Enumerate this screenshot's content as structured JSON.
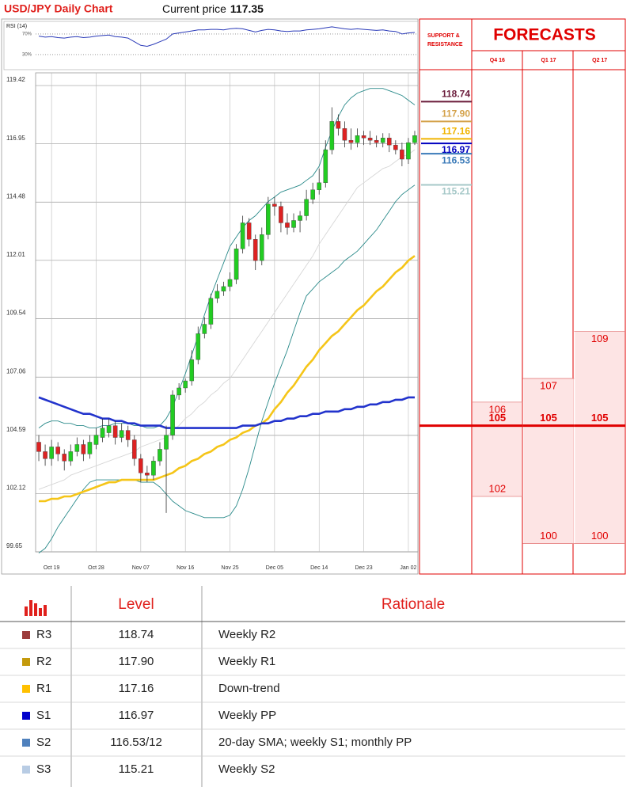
{
  "header": {
    "title": "USD/JPY Daily Chart",
    "price_label": "Current price",
    "price": "117.35"
  },
  "chart_data": [
    {
      "type": "line",
      "title": "RSI (14)",
      "color": "#2a3ab8",
      "ylim": [
        13,
        93
      ],
      "yticks": [
        {
          "value": 70,
          "label": "70%"
        },
        {
          "value": 30,
          "label": "30%"
        }
      ],
      "values": [
        66,
        64,
        65,
        63,
        62,
        64,
        65,
        63,
        64,
        66,
        67,
        68,
        65,
        64,
        62,
        55,
        48,
        46,
        50,
        55,
        60,
        70,
        72,
        74,
        76,
        78,
        78,
        79,
        79,
        78,
        80,
        81,
        80,
        77,
        74,
        77,
        79,
        78,
        76,
        75,
        76,
        76,
        78,
        79,
        80,
        82,
        84,
        82,
        80,
        79,
        80,
        79,
        78,
        77,
        78,
        76,
        75,
        70,
        72,
        73
      ]
    },
    {
      "type": "candlestick",
      "ylim": [
        99.65,
        119.96
      ],
      "yticks": [
        119.42,
        116.95,
        114.48,
        112.01,
        109.54,
        107.06,
        104.59,
        102.12,
        99.65
      ],
      "up_color": "#22cc22",
      "down_color": "#dd2222",
      "grid": true,
      "categories": [
        null,
        null,
        "Oct 19",
        null,
        null,
        null,
        null,
        null,
        null,
        "Oct 28",
        null,
        null,
        null,
        null,
        null,
        null,
        "Nov 07",
        null,
        null,
        null,
        null,
        null,
        null,
        "Nov 16",
        null,
        null,
        null,
        null,
        null,
        null,
        "Nov 25",
        null,
        null,
        null,
        null,
        null,
        null,
        "Dec 05",
        null,
        null,
        null,
        null,
        null,
        null,
        "Dec 14",
        null,
        null,
        null,
        null,
        null,
        null,
        "Dec 23",
        null,
        null,
        null,
        null,
        null,
        null,
        "Jan 02",
        null
      ],
      "open": [
        104.3,
        103.9,
        103.6,
        104.1,
        103.8,
        103.5,
        103.9,
        104.2,
        103.8,
        104.2,
        104.5,
        104.7,
        105.0,
        104.5,
        104.8,
        104.4,
        103.6,
        103.0,
        102.9,
        103.5,
        104.0,
        104.6,
        106.3,
        106.6,
        106.9,
        107.8,
        108.9,
        109.3,
        110.4,
        110.7,
        110.9,
        111.2,
        112.5,
        113.6,
        112.9,
        112.0,
        113.1,
        114.4,
        114.3,
        113.6,
        113.4,
        113.7,
        113.9,
        114.6,
        115.0,
        115.3,
        116.7,
        117.9,
        117.6,
        117.1,
        117.0,
        117.3,
        117.2,
        117.1,
        117.0,
        117.2,
        116.9,
        116.7,
        116.3,
        117.0
      ],
      "high": [
        104.6,
        104.2,
        104.4,
        104.3,
        104.0,
        104.2,
        104.5,
        104.4,
        104.6,
        104.9,
        105.3,
        105.3,
        105.2,
        105.1,
        105.0,
        104.6,
        103.8,
        103.3,
        103.7,
        104.3,
        105.0,
        106.5,
        106.8,
        107.0,
        108.2,
        109.2,
        109.6,
        110.6,
        111.0,
        111.1,
        111.5,
        112.7,
        113.9,
        113.8,
        113.1,
        113.4,
        114.7,
        114.7,
        114.5,
        114.0,
        114.0,
        114.1,
        115.0,
        115.3,
        115.9,
        117.1,
        118.5,
        118.2,
        117.9,
        117.6,
        117.6,
        117.5,
        117.5,
        117.3,
        117.4,
        117.4,
        117.1,
        117.0,
        117.2,
        117.5
      ],
      "low": [
        103.5,
        103.3,
        103.3,
        103.5,
        103.1,
        103.3,
        103.7,
        103.5,
        103.6,
        104.0,
        104.3,
        104.5,
        104.2,
        104.3,
        104.1,
        103.3,
        102.6,
        102.6,
        102.7,
        103.3,
        101.3,
        104.4,
        106.1,
        106.4,
        106.7,
        107.6,
        108.7,
        109.1,
        110.2,
        110.5,
        110.7,
        111.0,
        112.3,
        112.6,
        111.6,
        111.8,
        112.9,
        113.9,
        113.2,
        113.1,
        113.2,
        113.2,
        113.7,
        114.4,
        114.8,
        115.1,
        116.5,
        117.3,
        116.8,
        116.7,
        116.8,
        116.9,
        116.9,
        116.8,
        116.8,
        116.6,
        116.5,
        116.0,
        116.1,
        116.9
      ],
      "close": [
        103.9,
        103.6,
        104.1,
        103.8,
        103.5,
        103.9,
        104.2,
        103.8,
        104.3,
        104.6,
        104.9,
        105.0,
        104.5,
        104.8,
        104.4,
        103.6,
        103.0,
        102.9,
        103.5,
        104.0,
        104.6,
        106.3,
        106.6,
        106.9,
        107.8,
        108.9,
        109.3,
        110.4,
        110.7,
        110.9,
        111.2,
        112.5,
        113.6,
        112.9,
        112.0,
        113.1,
        114.4,
        114.3,
        113.6,
        113.4,
        113.7,
        113.9,
        114.6,
        115.0,
        115.3,
        116.7,
        117.9,
        117.6,
        117.1,
        117.0,
        117.3,
        117.2,
        117.1,
        117.0,
        117.2,
        116.9,
        116.7,
        116.3,
        117.0,
        117.3
      ],
      "series": [
        {
          "color": "#d6d6d6",
          "values": [
            102.3,
            102.4,
            102.5,
            102.6,
            102.7,
            102.9,
            103.0,
            103.1,
            103.2,
            103.3,
            103.4,
            103.5,
            103.6,
            103.7,
            103.8,
            103.9,
            104.1,
            104.2,
            104.3,
            104.4,
            104.5,
            104.8,
            105.0,
            105.3,
            105.5,
            105.8,
            106.0,
            106.3,
            106.5,
            106.8,
            107.0,
            107.4,
            107.8,
            108.2,
            108.6,
            109.0,
            109.4,
            109.8,
            110.2,
            110.6,
            111.0,
            111.4,
            111.8,
            112.2,
            112.7,
            113.1,
            113.5,
            113.9,
            114.3,
            114.7,
            115.1,
            115.3,
            115.5,
            115.7,
            115.9,
            116.0,
            116.2,
            116.4,
            116.5,
            116.7
          ]
        },
        {
          "color": "#2a8a8a",
          "values": [
            104.9,
            105.1,
            105.2,
            105.2,
            105.1,
            105.1,
            105.0,
            105.0,
            104.9,
            104.9,
            105.0,
            105.0,
            105.1,
            105.1,
            105.1,
            105.0,
            105.0,
            104.9,
            104.9,
            105.0,
            105.3,
            105.8,
            106.5,
            107.2,
            108.0,
            108.8,
            109.7,
            110.5,
            111.2,
            111.9,
            112.6,
            113.0,
            113.4,
            113.7,
            113.9,
            114.2,
            114.5,
            114.7,
            114.9,
            115.0,
            115.1,
            115.2,
            115.4,
            115.6,
            116.0,
            116.8,
            117.5,
            118.1,
            118.6,
            118.9,
            119.1,
            119.2,
            119.3,
            119.3,
            119.3,
            119.2,
            119.1,
            119.0,
            118.8,
            118.6
          ]
        },
        {
          "color": "#2a8a8a",
          "values": [
            99.6,
            99.8,
            100.2,
            100.7,
            101.1,
            101.5,
            101.9,
            102.3,
            102.6,
            102.7,
            102.7,
            102.7,
            102.7,
            102.7,
            102.7,
            102.7,
            102.6,
            102.6,
            102.6,
            102.4,
            102.1,
            101.8,
            101.6,
            101.4,
            101.3,
            101.2,
            101.1,
            101.1,
            101.1,
            101.1,
            101.2,
            101.6,
            102.3,
            103.2,
            104.2,
            105.2,
            106.0,
            106.8,
            107.5,
            108.2,
            109.0,
            109.8,
            110.5,
            110.8,
            111.1,
            111.3,
            111.5,
            111.7,
            112.0,
            112.2,
            112.4,
            112.7,
            113.0,
            113.3,
            113.7,
            114.1,
            114.5,
            114.8,
            115.0,
            115.2
          ]
        },
        {
          "color": "#f5c518",
          "values": [
            101.8,
            101.8,
            101.9,
            101.9,
            102.0,
            102.0,
            102.1,
            102.2,
            102.3,
            102.4,
            102.5,
            102.6,
            102.6,
            102.7,
            102.7,
            102.7,
            102.7,
            102.7,
            102.7,
            102.8,
            102.9,
            103.0,
            103.2,
            103.3,
            103.5,
            103.6,
            103.8,
            103.9,
            104.1,
            104.2,
            104.4,
            104.5,
            104.7,
            104.8,
            105.0,
            105.1,
            105.3,
            105.7,
            106.0,
            106.4,
            106.7,
            107.1,
            107.5,
            107.8,
            108.2,
            108.5,
            108.8,
            109.0,
            109.3,
            109.6,
            109.9,
            110.1,
            110.4,
            110.7,
            110.9,
            111.2,
            111.5,
            111.7,
            112.0,
            112.2
          ]
        },
        {
          "color": "#2233cc",
          "values": [
            106.2,
            106.1,
            106.0,
            105.9,
            105.8,
            105.7,
            105.6,
            105.5,
            105.5,
            105.4,
            105.3,
            105.3,
            105.2,
            105.2,
            105.1,
            105.1,
            105.0,
            105.0,
            105.0,
            105.0,
            104.9,
            104.9,
            104.9,
            104.9,
            104.9,
            104.9,
            104.9,
            104.9,
            104.9,
            104.9,
            104.9,
            104.9,
            105.0,
            105.0,
            105.0,
            105.1,
            105.1,
            105.2,
            105.2,
            105.3,
            105.3,
            105.4,
            105.4,
            105.5,
            105.5,
            105.6,
            105.6,
            105.6,
            105.7,
            105.7,
            105.8,
            105.8,
            105.9,
            105.9,
            106.0,
            106.0,
            106.1,
            106.1,
            106.2,
            106.2
          ]
        }
      ]
    },
    {
      "type": "levels",
      "title": "SUPPORT & RESISTANCE",
      "values": [
        118.74,
        117.9,
        117.16,
        116.97,
        116.53,
        115.21
      ],
      "value_labels": [
        "118.74",
        "117.90",
        "117.16",
        "116.97",
        "116.53",
        "115.21"
      ],
      "colors": [
        "#6a1b3a",
        "#d4a24a",
        "#f0b400",
        "#0000c0",
        "#3a7ab8",
        "#a6c8c8"
      ]
    },
    {
      "type": "range",
      "title": "FORECASTS",
      "color": "#e00000",
      "fill": "#fde4e4",
      "categories": [
        "Q4 16",
        "Q1 17",
        "Q2 17"
      ],
      "high": [
        106,
        107,
        109
      ],
      "low": [
        102,
        100,
        100
      ],
      "central": [
        105,
        105,
        105
      ]
    }
  ],
  "table": {
    "header": [
      "Level",
      "Rationale"
    ],
    "colors": [
      "#9b3b3b",
      "#c49a0c",
      "#ffc000",
      "#0000cc",
      "#4f81bd",
      "#b8cce4"
    ],
    "rows": [
      [
        "R3",
        "118.74",
        "Weekly R2"
      ],
      [
        "R2",
        "117.90",
        "Weekly R1"
      ],
      [
        "R1",
        "117.16",
        "Down-trend"
      ],
      [
        "S1",
        "116.97",
        "Weekly PP"
      ],
      [
        "S2",
        "116.53/12",
        "20-day SMA; weekly S1; monthly PP"
      ],
      [
        "S3",
        "115.21",
        "Weekly S2"
      ]
    ]
  }
}
